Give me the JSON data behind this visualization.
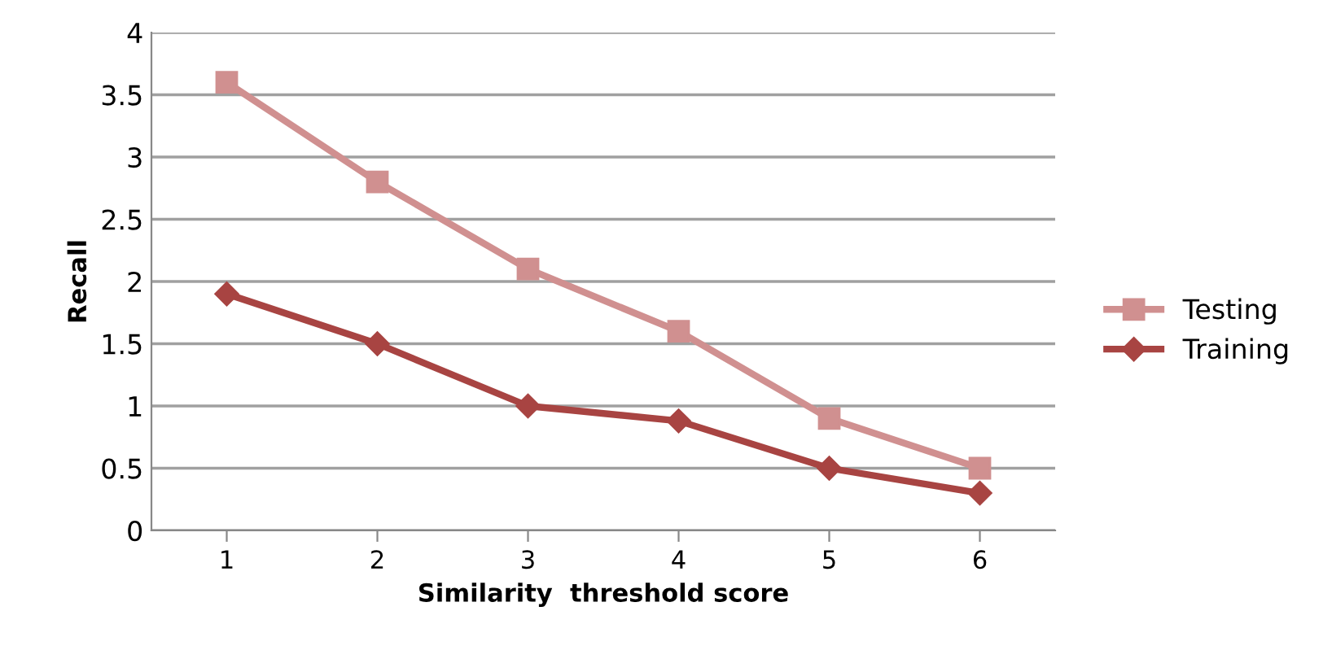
{
  "chart_data": {
    "type": "line",
    "xlabel": "Similarity  threshold score",
    "ylabel": "Recall",
    "categories": [
      "1",
      "2",
      "3",
      "4",
      "5",
      "6"
    ],
    "series": [
      {
        "name": "Testing",
        "color": "#d09090",
        "marker": "square",
        "values": [
          3.6,
          2.8,
          2.1,
          1.6,
          0.9,
          0.5
        ]
      },
      {
        "name": "Training",
        "color": "#a84442",
        "marker": "diamond",
        "values": [
          1.9,
          1.5,
          1.0,
          0.88,
          0.5,
          0.3
        ]
      }
    ],
    "ylim": [
      0,
      4
    ],
    "yticks": [
      0,
      0.5,
      1,
      1.5,
      2,
      2.5,
      3,
      3.5,
      4
    ],
    "grid": "y",
    "legend": "right",
    "line_style": "solid"
  }
}
